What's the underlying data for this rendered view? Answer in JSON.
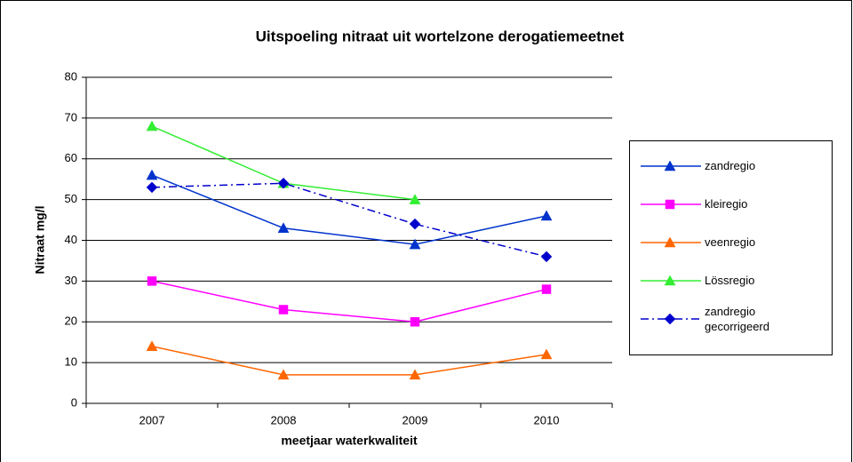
{
  "chart_data": {
    "type": "line",
    "title": "Uitspoeling nitraat uit wortelzone derogatiemeetnet",
    "y_label": "Nitraat mg/l",
    "x_label": "meetjaar waterkwaliteit",
    "categories": [
      "2007",
      "2008",
      "2009",
      "2010"
    ],
    "ylim": [
      0,
      80
    ],
    "yticks": [
      0,
      10,
      20,
      30,
      40,
      50,
      60,
      70,
      80
    ],
    "grid": true,
    "legend": "right",
    "series": [
      {
        "name": "zandregio",
        "color": "#0033cc",
        "marker": "triangle",
        "dash": "solid",
        "values": [
          56,
          43,
          39,
          46
        ]
      },
      {
        "name": "kleiregio",
        "color": "#ff00ff",
        "marker": "square",
        "dash": "solid",
        "values": [
          30,
          23,
          20,
          28
        ]
      },
      {
        "name": "veenregio",
        "color": "#ff6600",
        "marker": "triangle",
        "dash": "solid",
        "values": [
          14,
          7,
          7,
          12
        ]
      },
      {
        "name": "Lössregio",
        "color": "#33ee33",
        "marker": "triangle",
        "dash": "solid",
        "values": [
          68,
          54,
          50,
          null
        ]
      },
      {
        "name": "zandregio gecorrigeerd",
        "color": "#0000cc",
        "marker": "diamond",
        "dash": "dashdot",
        "values": [
          53,
          54,
          44,
          36
        ]
      }
    ]
  }
}
